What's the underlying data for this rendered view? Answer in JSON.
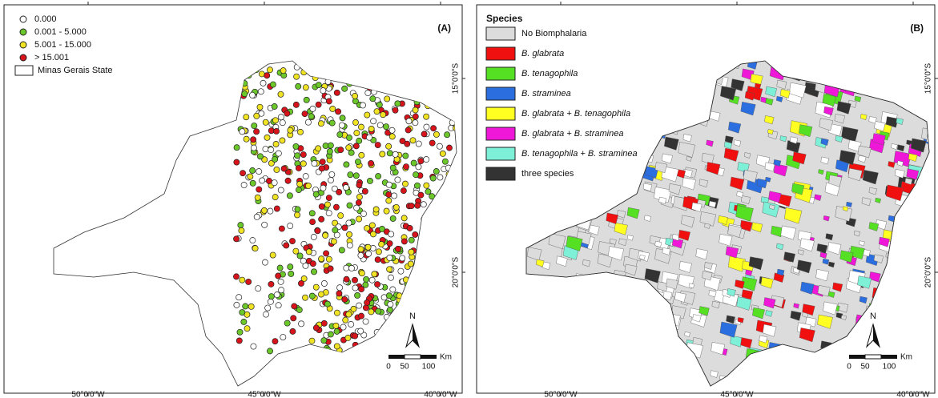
{
  "panels": [
    {
      "tag": "(A)",
      "legend": [
        {
          "label": "0.000",
          "color": "#ffffff"
        },
        {
          "label": "0.001 - 5.000",
          "color": "#6cc72a"
        },
        {
          "label": "5.001 - 15.000",
          "color": "#f0e324"
        },
        {
          "label": "> 15.001",
          "color": "#d7141b"
        },
        {
          "label": "Minas Gerais State",
          "color": "#ffffff"
        }
      ],
      "x_labels": [
        "50°0'0\"W",
        "45°0'0\"W",
        "40°0'0\"W"
      ],
      "y_labels": [
        "15°0'0\"S",
        "20°0'0\"S"
      ],
      "north": "N",
      "scale_unit": "Km",
      "scale_labels": [
        "0",
        "50",
        "100"
      ]
    },
    {
      "tag": "(B)",
      "legend_title": "Species",
      "legend": [
        {
          "label": "No Biomphalaria",
          "color": "#dcdcdc"
        },
        {
          "label": "B. glabrata",
          "color": "#f01010"
        },
        {
          "label": "B. tenagophila",
          "color": "#55e024"
        },
        {
          "label": "B. straminea",
          "color": "#2a6ee0"
        },
        {
          "label": "B. glabrata + B. tenagophila",
          "color": "#ffff22"
        },
        {
          "label": "B. glabrata + B. straminea",
          "color": "#f018d8"
        },
        {
          "label": "B. tenagophila + B. straminea",
          "color": "#7ff0d8"
        },
        {
          "label": "three species",
          "color": "#333333"
        }
      ],
      "x_labels": [
        "50°0'0\"W",
        "45°0'0\"W",
        "40°0'0\"W"
      ],
      "y_labels": [
        "15°0'0\"S",
        "20°0'0\"S"
      ],
      "north": "N",
      "scale_unit": "Km",
      "scale_labels": [
        "0",
        "50",
        "100"
      ]
    }
  ]
}
